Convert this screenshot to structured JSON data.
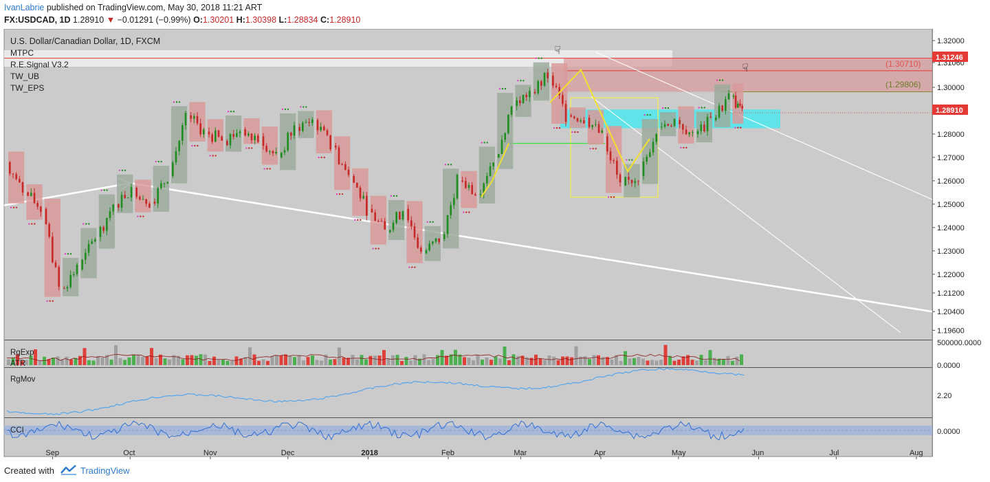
{
  "header": {
    "author": "IvanLabrie",
    "published_text": "published on TradingView.com, May 30, 2018 11:21 ART",
    "symbol": "FX:USDCAD, 1D",
    "last": "1.28910",
    "change": "−0.01291 (−0.99%)",
    "open_label": "O:",
    "open": "1.30201",
    "high_label": "H:",
    "high": "1.30398",
    "low_label": "L:",
    "low": "1.28834",
    "close_label": "C:",
    "close": "1.28910"
  },
  "legend": {
    "title": "U.S. Dollar/Canadian Dollar, 1D, FXCM",
    "indicators": [
      "MTPC",
      "R.E.Signal V3.2",
      "TW_UB",
      "TW_EPS"
    ]
  },
  "subpanes": {
    "volume_labels": [
      "RgExp",
      "ATR"
    ],
    "volume_axis": [
      "500000.0000",
      "0.0000"
    ],
    "mov_label": "RgMov",
    "mov_axis": [
      "2.20"
    ],
    "cci_label": "CCI",
    "cci_axis": [
      "0.0000"
    ]
  },
  "price_badges": {
    "resistance": "1.31246",
    "current": "1.28910",
    "level_1": "(1.30710)",
    "level_2": "(1.29806)"
  },
  "colors": {
    "bull": "#1e8c1e",
    "bear": "#c62828",
    "bull_box": "#9cab9c",
    "bear_box": "#d99a9a",
    "panel_bg": "#cbcbcb",
    "cyan_zone": "#4fe9ee",
    "trend_line": "#ffffff",
    "mov_line": "#4aa3f0",
    "cci_line": "#2f6fd6",
    "badge_red": "#e53935",
    "pink_dot": "#e040c0"
  },
  "chart_data": {
    "type": "line",
    "title": "U.S. Dollar/Canadian Dollar, 1D, FXCM",
    "xlabel": "",
    "ylabel": "",
    "x_ticks": [
      "Sep",
      "Oct",
      "Nov",
      "Dec",
      "2018",
      "Feb",
      "Mar",
      "Apr",
      "May",
      "Jun",
      "Jul",
      "Aug"
    ],
    "y_ticks": [
      "1.32000",
      "1.31060",
      "1.30000",
      "1.29000",
      "1.28000",
      "1.27000",
      "1.26000",
      "1.25000",
      "1.24000",
      "1.23000",
      "1.22000",
      "1.21200",
      "1.20400",
      "1.19600"
    ],
    "ylim": [
      1.192,
      1.325
    ],
    "series": [
      {
        "x": [
          "2017-08-17",
          "2017-08-24",
          "2017-08-31",
          "2017-09-07",
          "2017-09-14",
          "2017-09-21",
          "2017-09-28",
          "2017-10-05",
          "2017-10-12",
          "2017-10-19",
          "2017-10-26",
          "2017-11-02",
          "2017-11-09",
          "2017-11-16",
          "2017-11-23",
          "2017-11-30",
          "2017-12-07",
          "2017-12-14",
          "2017-12-21",
          "2017-12-28",
          "2018-01-04",
          "2018-01-11",
          "2018-01-18",
          "2018-01-25",
          "2018-02-01",
          "2018-02-08",
          "2018-02-15",
          "2018-02-22",
          "2018-03-01",
          "2018-03-08",
          "2018-03-15",
          "2018-03-22",
          "2018-03-29",
          "2018-04-05",
          "2018-04-12",
          "2018-04-19",
          "2018-04-26",
          "2018-05-03",
          "2018-05-10",
          "2018-05-17",
          "2018-05-24",
          "2018-05-29"
        ],
        "values": [
          1.268,
          1.255,
          1.248,
          1.214,
          1.222,
          1.236,
          1.25,
          1.257,
          1.251,
          1.262,
          1.288,
          1.281,
          1.277,
          1.282,
          1.279,
          1.27,
          1.283,
          1.286,
          1.275,
          1.262,
          1.248,
          1.238,
          1.248,
          1.229,
          1.235,
          1.26,
          1.254,
          1.27,
          1.292,
          1.298,
          1.305,
          1.288,
          1.287,
          1.279,
          1.258,
          1.262,
          1.283,
          1.286,
          1.28,
          1.286,
          1.296,
          1.289
        ]
      }
    ],
    "annotations": [
      "(1.30710)",
      "(1.29806)",
      "1.31246",
      "1.28910"
    ]
  }
}
